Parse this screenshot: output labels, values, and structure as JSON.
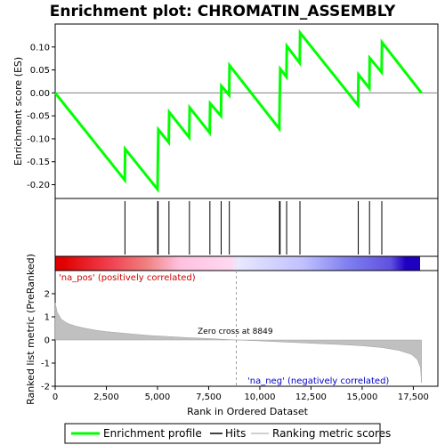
{
  "chart_data": {
    "type": "line",
    "title": "Enrichment plot: CHROMATIN_ASSEMBLY",
    "xlabel": "Rank in Ordered Dataset",
    "ylabel_top": "Enrichment score (ES)",
    "ylabel_bottom": "Ranked list metric (PreRanked)",
    "xlim": [
      0,
      18700
    ],
    "es_ylim": [
      -0.23,
      0.15
    ],
    "metric_ylim": [
      -2.0,
      3.0
    ],
    "x_ticks": [
      0,
      2500,
      5000,
      7500,
      10000,
      12500,
      15000,
      17500
    ],
    "x_tick_labels": [
      "0",
      "2,500",
      "5,000",
      "7,500",
      "10,000",
      "12,500",
      "15,000",
      "17,500"
    ],
    "es_ticks": [
      -0.2,
      -0.15,
      -0.1,
      -0.05,
      0.0,
      0.05,
      0.1
    ],
    "es_tick_labels": [
      "-0.20",
      "-0.15",
      "-0.10",
      "-0.05",
      "0.00",
      "0.05",
      "0.10"
    ],
    "metric_ticks": [
      -2,
      -1,
      0,
      1,
      2
    ],
    "metric_tick_labels": [
      "-2",
      "-1",
      "0",
      "1",
      "2"
    ],
    "es_curve": [
      [
        0,
        0.0
      ],
      [
        3400,
        -0.19
      ],
      [
        3420,
        -0.122
      ],
      [
        5000,
        -0.21
      ],
      [
        5020,
        -0.148
      ],
      [
        5040,
        -0.08
      ],
      [
        5550,
        -0.108
      ],
      [
        5570,
        -0.042
      ],
      [
        6550,
        -0.097
      ],
      [
        6570,
        -0.032
      ],
      [
        7550,
        -0.087
      ],
      [
        7570,
        -0.023
      ],
      [
        8100,
        -0.05
      ],
      [
        8120,
        0.015
      ],
      [
        8500,
        -0.005
      ],
      [
        8520,
        0.06
      ],
      [
        10950,
        -0.078
      ],
      [
        10970,
        -0.012
      ],
      [
        11000,
        0.052
      ],
      [
        11300,
        0.035
      ],
      [
        11320,
        0.102
      ],
      [
        11950,
        0.065
      ],
      [
        11970,
        0.131
      ],
      [
        14800,
        -0.027
      ],
      [
        14820,
        0.04
      ],
      [
        15350,
        0.01
      ],
      [
        15370,
        0.076
      ],
      [
        15950,
        0.045
      ],
      [
        15970,
        0.11
      ],
      [
        17900,
        0.0
      ]
    ],
    "hits": [
      3410,
      5010,
      5030,
      5560,
      6560,
      7560,
      8110,
      8510,
      10960,
      10990,
      11310,
      11960,
      14810,
      15360,
      15960
    ],
    "zero_cross": 8849,
    "zero_cross_label": "Zero cross at 8849",
    "pos_label": "'na_pos' (positively correlated)",
    "neg_label": "'na_neg' (negatively correlated)",
    "metric_profile": [
      [
        0,
        1.6
      ],
      [
        100,
        1.2
      ],
      [
        300,
        0.9
      ],
      [
        600,
        0.72
      ],
      [
        1000,
        0.6
      ],
      [
        1500,
        0.5
      ],
      [
        2000,
        0.42
      ],
      [
        2500,
        0.36
      ],
      [
        3500,
        0.28
      ],
      [
        4500,
        0.2
      ],
      [
        5500,
        0.15
      ],
      [
        6500,
        0.1
      ],
      [
        7500,
        0.06
      ],
      [
        8849,
        0.0
      ],
      [
        10000,
        -0.04
      ],
      [
        11000,
        -0.08
      ],
      [
        12000,
        -0.12
      ],
      [
        13000,
        -0.16
      ],
      [
        14000,
        -0.2
      ],
      [
        15000,
        -0.25
      ],
      [
        16000,
        -0.33
      ],
      [
        16800,
        -0.45
      ],
      [
        17400,
        -0.62
      ],
      [
        17700,
        -0.85
      ],
      [
        17850,
        -1.2
      ],
      [
        17900,
        -1.85
      ]
    ],
    "colors": {
      "es_line": "#00ff00",
      "hit_line": "#000000",
      "metric_fill": "#c0c0c0",
      "zero_line": "#808080",
      "band_stops": [
        "#e00000",
        "#f08080",
        "#ffc0e0",
        "#e0e0ff",
        "#8080ff",
        "#2000c0"
      ]
    },
    "legend": {
      "entries": [
        "Enrichment profile",
        "Hits",
        "Ranking metric scores"
      ]
    }
  }
}
